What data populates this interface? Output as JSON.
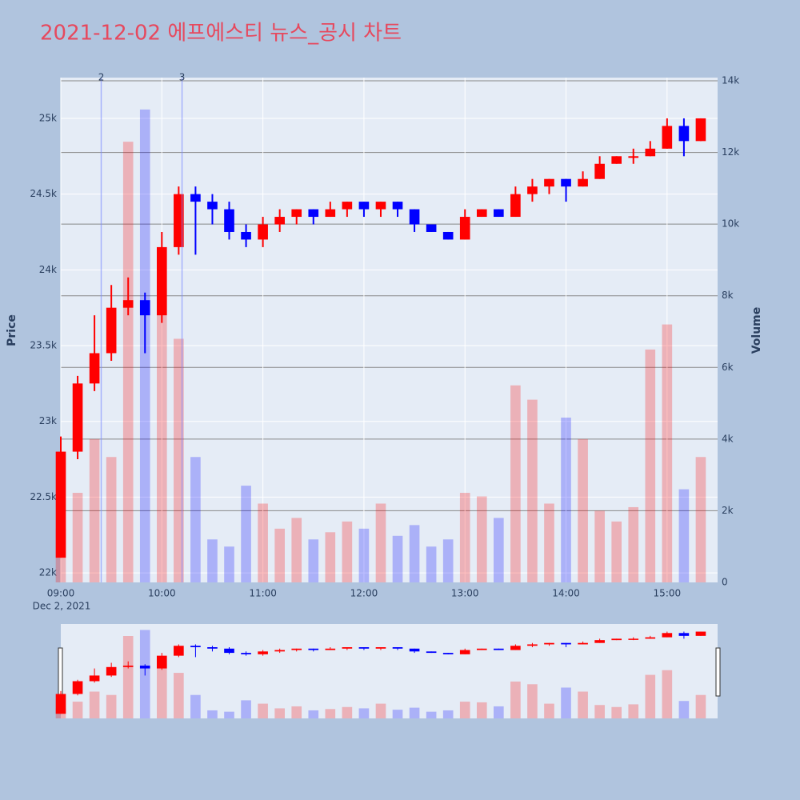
{
  "chart_data": {
    "type": "candlestick",
    "title": "2021-12-02 에프에스티 뉴스_공시 차트",
    "title_color": "#e6495e",
    "x": [
      "09:00",
      "09:10",
      "09:20",
      "09:30",
      "09:40",
      "09:50",
      "10:00",
      "10:10",
      "10:20",
      "10:30",
      "10:40",
      "10:50",
      "11:00",
      "11:10",
      "11:20",
      "11:30",
      "11:40",
      "11:50",
      "12:00",
      "12:10",
      "12:20",
      "12:30",
      "12:40",
      "12:50",
      "13:00",
      "13:10",
      "13:20",
      "13:30",
      "13:40",
      "13:50",
      "14:00",
      "14:10",
      "14:20",
      "14:30",
      "14:40",
      "14:50",
      "15:00",
      "15:10",
      "15:20"
    ],
    "open": [
      22100,
      22800,
      23250,
      23450,
      23750,
      23800,
      23700,
      24150,
      24500,
      24450,
      24400,
      24250,
      24200,
      24300,
      24350,
      24400,
      24350,
      24400,
      24450,
      24400,
      24450,
      24400,
      24300,
      24250,
      24200,
      24350,
      24400,
      24350,
      24500,
      24550,
      24600,
      24550,
      24600,
      24700,
      24750,
      24750,
      24800,
      24950,
      24850
    ],
    "high": [
      22900,
      23300,
      23700,
      23900,
      23950,
      23850,
      24250,
      24550,
      24550,
      24500,
      24450,
      24300,
      24350,
      24400,
      24400,
      24400,
      24450,
      24450,
      24450,
      24450,
      24450,
      24400,
      24300,
      24250,
      24400,
      24400,
      24400,
      24550,
      24600,
      24600,
      24600,
      24650,
      24750,
      24750,
      24800,
      24850,
      25000,
      25000,
      25000
    ],
    "low": [
      22100,
      22750,
      23200,
      23400,
      23700,
      23450,
      23650,
      24100,
      24100,
      24300,
      24200,
      24150,
      24150,
      24250,
      24300,
      24300,
      24350,
      24350,
      24350,
      24350,
      24350,
      24250,
      24250,
      24200,
      24200,
      24350,
      24350,
      24350,
      24450,
      24500,
      24450,
      24550,
      24600,
      24700,
      24700,
      24750,
      24800,
      24750,
      24850
    ],
    "close": [
      22800,
      23250,
      23450,
      23750,
      23800,
      23700,
      24150,
      24500,
      24450,
      24400,
      24250,
      24200,
      24300,
      24350,
      24400,
      24350,
      24400,
      24450,
      24400,
      24450,
      24400,
      24300,
      24250,
      24200,
      24350,
      24400,
      24350,
      24500,
      24550,
      24600,
      24550,
      24600,
      24700,
      24750,
      24750,
      24800,
      24950,
      24850,
      25000
    ],
    "volume": [
      1500,
      2500,
      4000,
      3500,
      12300,
      13200,
      8200,
      6800,
      3500,
      1200,
      1000,
      2700,
      2200,
      1500,
      1800,
      1200,
      1400,
      1700,
      1500,
      2200,
      1300,
      1600,
      1000,
      1200,
      2500,
      2400,
      1800,
      5500,
      5100,
      2200,
      4600,
      4000,
      2000,
      1700,
      2100,
      6500,
      7200,
      2600,
      3500
    ],
    "up_color": "#ff0000",
    "down_color": "#0000ff",
    "xlim": [
      "09:00",
      "15:30"
    ],
    "xticks": [
      "09:00",
      "10:00",
      "11:00",
      "12:00",
      "13:00",
      "14:00",
      "15:00"
    ],
    "x_sublabel": "Dec 2, 2021",
    "ylabel": "Price",
    "ylim": [
      21937,
      25269
    ],
    "yticks": [
      {
        "value": 22000,
        "label": "22k"
      },
      {
        "value": 22500,
        "label": "22.5k"
      },
      {
        "value": 23000,
        "label": "23k"
      },
      {
        "value": 23500,
        "label": "23.5k"
      },
      {
        "value": 24000,
        "label": "24k"
      },
      {
        "value": 24500,
        "label": "24.5k"
      },
      {
        "value": 25000,
        "label": "25k"
      }
    ],
    "y2label": "Volume",
    "y2lim": [
      0,
      14090
    ],
    "y2ticks": [
      0,
      {
        "value": 2000,
        "label": "2k"
      },
      {
        "value": 4000,
        "label": "4k"
      },
      {
        "value": 6000,
        "label": "6k"
      },
      {
        "value": 8000,
        "label": "8k"
      },
      {
        "value": 10000,
        "label": "10k"
      },
      {
        "value": 12000,
        "label": "12k"
      },
      {
        "value": 14000,
        "label": "14k"
      }
    ],
    "grid": true,
    "annotations": [
      {
        "x": "09:24",
        "label": "2"
      },
      {
        "x": "10:12",
        "label": "3"
      }
    ]
  }
}
